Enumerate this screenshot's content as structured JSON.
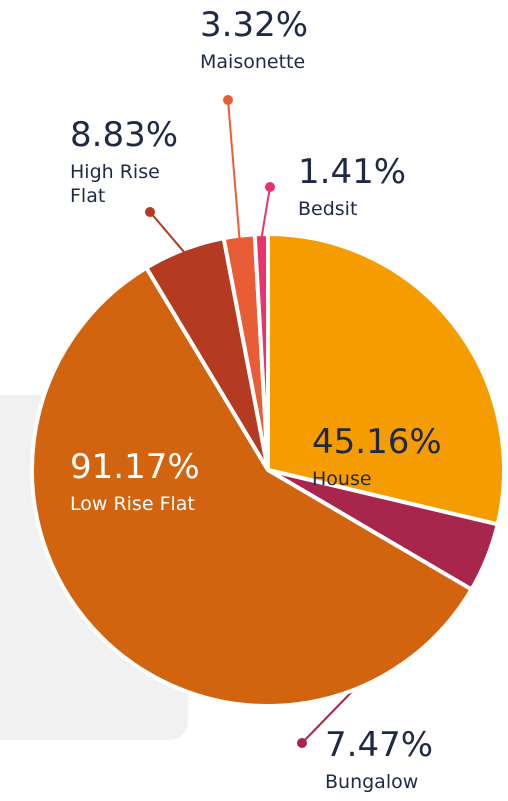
{
  "chart_data": {
    "type": "pie",
    "categories": [
      "House",
      "Bungalow",
      "Low Rise Flat",
      "High Rise Flat",
      "Maisonette",
      "Bedsit"
    ],
    "values": [
      45.16,
      7.47,
      91.17,
      8.83,
      3.32,
      1.41
    ],
    "value_labels": [
      "45.16%",
      "7.47%",
      "91.17%",
      "8.83%",
      "3.32%",
      "1.41%"
    ],
    "colors": [
      "#f59c00",
      "#a8264c",
      "#d2640f",
      "#b53a22",
      "#e85d36",
      "#e8336e"
    ]
  }
}
